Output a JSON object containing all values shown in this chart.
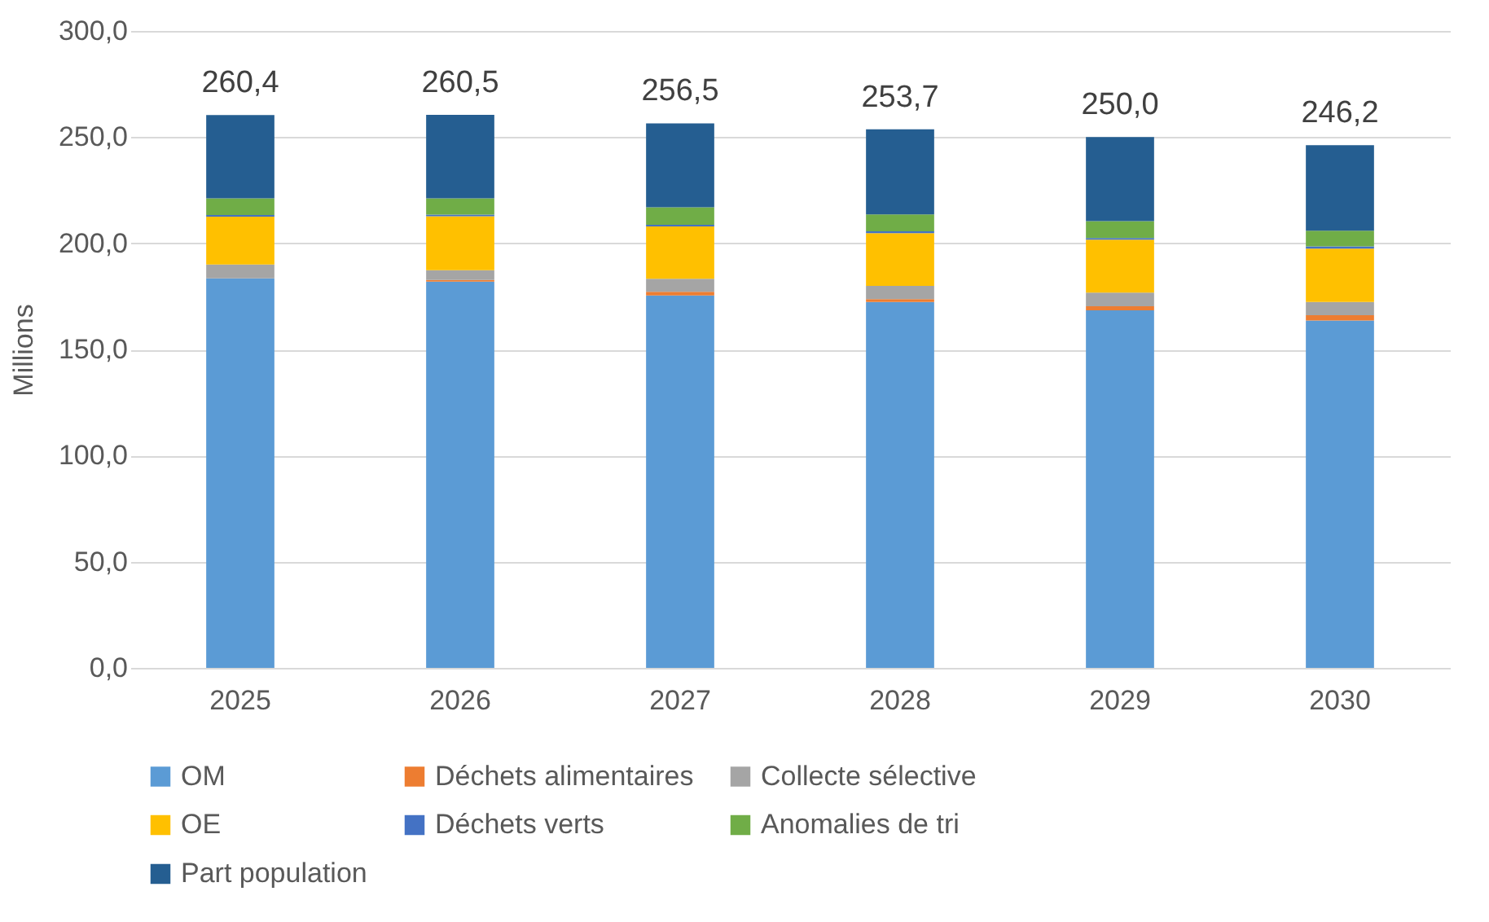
{
  "chart_data": {
    "type": "bar",
    "stacked": true,
    "ylabel": "Millions",
    "categories": [
      "2025",
      "2026",
      "2027",
      "2028",
      "2029",
      "2030"
    ],
    "series": [
      {
        "name": "OM",
        "color": "#5b9bd5",
        "values": [
          183.5,
          181.9,
          175.4,
          172.3,
          168.4,
          163.6
        ]
      },
      {
        "name": "Déchets alimentaires",
        "color": "#ed7d31",
        "values": [
          0,
          0.8,
          1.7,
          1.4,
          1.9,
          2.5
        ]
      },
      {
        "name": "Collecte sélective",
        "color": "#a5a5a5",
        "values": [
          6.5,
          4.6,
          6.2,
          6.2,
          6.5,
          6.2
        ]
      },
      {
        "name": "OE",
        "color": "#ffc000",
        "values": [
          22.5,
          25.4,
          24.6,
          24.9,
          24.9,
          25.2
        ]
      },
      {
        "name": "Déchets verts",
        "color": "#4472c4",
        "values": [
          0.8,
          0.8,
          0.8,
          0.8,
          0.8,
          1.0
        ]
      },
      {
        "name": "Anomalies de tri",
        "color": "#70ad47",
        "values": [
          7.9,
          7.7,
          8.2,
          8.0,
          7.9,
          7.4
        ]
      },
      {
        "name": "Part population",
        "color": "#255e91",
        "values": [
          39.2,
          39.3,
          39.6,
          40.1,
          39.6,
          40.3
        ]
      }
    ],
    "totals": [
      "260,4",
      "260,5",
      "256,5",
      "253,7",
      "250,0",
      "246,2"
    ],
    "ylim": [
      0,
      300
    ],
    "yticks": [
      {
        "value": 0,
        "label": "0,0"
      },
      {
        "value": 50,
        "label": "50,0"
      },
      {
        "value": 100,
        "label": "100,0"
      },
      {
        "value": 150,
        "label": "150,0"
      },
      {
        "value": 200,
        "label": "200,0"
      },
      {
        "value": 250,
        "label": "250,0"
      },
      {
        "value": 300,
        "label": "300,0"
      }
    ],
    "grid": "y",
    "legend": "bottom"
  }
}
